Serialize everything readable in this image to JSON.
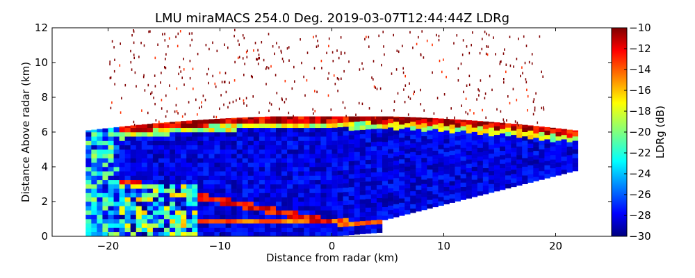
{
  "chart_data": {
    "type": "heatmap",
    "title": "LMU miraMACS 254.0 Deg. 2019-03-07T12:44:44Z  LDRg",
    "xlabel": "Distance from radar (km)",
    "ylabel": "Distance Above radar  (km)",
    "xlim": [
      -25,
      25
    ],
    "ylim": [
      0,
      12
    ],
    "x_ticks": [
      "−20",
      "−10",
      "0",
      "10",
      "20"
    ],
    "y_ticks": [
      "0",
      "2",
      "4",
      "6",
      "8",
      "10",
      "12"
    ],
    "colorbar": {
      "label": "LDRg (dB)",
      "range": [
        -30,
        -10
      ],
      "colormap": "jet",
      "ticks": [
        "−10",
        "−12",
        "−14",
        "−16",
        "−18",
        "−20",
        "−22",
        "−24",
        "−26",
        "−28",
        "−30"
      ]
    },
    "scan": {
      "type": "RHI",
      "azimuth_deg": 254.0,
      "left_edge_x_km": -22,
      "right_edge_x_km": 22,
      "cloud_top_km": 6.8,
      "melting_layer_km": 0.8,
      "dominant_value_db": -28
    }
  }
}
